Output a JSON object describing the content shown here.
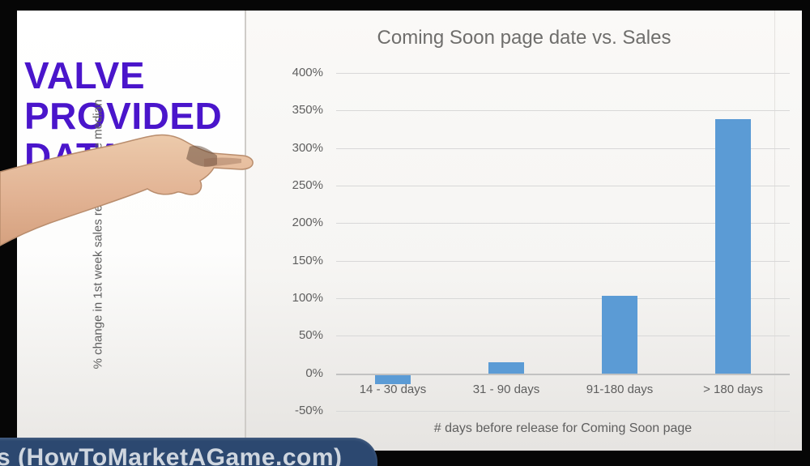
{
  "left_panel": {
    "heading_lines": [
      "VALVE",
      "PROVIDED",
      "DATA"
    ],
    "text_color": "#4a15cb"
  },
  "banner": {
    "text": "s (HowToMarketAGame.com)",
    "bg_color": "#2c4870"
  },
  "chart_data": {
    "type": "bar",
    "title": "Coming Soon page date vs. Sales",
    "xlabel": "# days before release for Coming Soon page",
    "ylabel": "% change in 1st week sales relative to the median",
    "categories": [
      "14 - 30 days",
      "31 - 90 days",
      "91-180 days",
      "> 180 days"
    ],
    "values": [
      -14,
      15,
      103,
      338
    ],
    "ylim": [
      -50,
      400
    ],
    "yticks": [
      {
        "value": 400,
        "label": "400%"
      },
      {
        "value": 350,
        "label": "350%"
      },
      {
        "value": 300,
        "label": "300%"
      },
      {
        "value": 250,
        "label": "250%"
      },
      {
        "value": 200,
        "label": "200%"
      },
      {
        "value": 150,
        "label": "150%"
      },
      {
        "value": 100,
        "label": "100%"
      },
      {
        "value": 50,
        "label": "50%"
      },
      {
        "value": 0,
        "label": "0%"
      },
      {
        "value": -50,
        "label": "-50%"
      }
    ],
    "bar_color": "#5b9bd5",
    "grid": true,
    "legend": "none"
  }
}
